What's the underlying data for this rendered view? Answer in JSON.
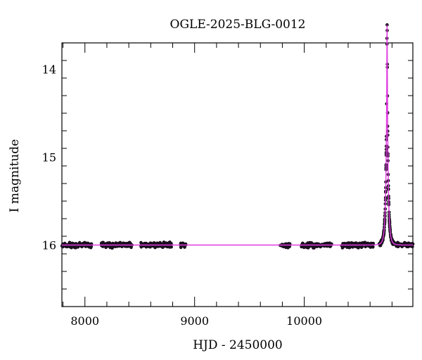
{
  "chart_data": {
    "type": "scatter",
    "title": "OGLE-2025-BLG-0012",
    "xlabel": "HJD - 2450000",
    "ylabel": "I magnitude",
    "xlim": [
      7790,
      10990
    ],
    "ylim": [
      16.7,
      13.7
    ],
    "y_inverted": true,
    "grid": false,
    "x_major_ticks": [
      8000,
      9000,
      10000
    ],
    "x_tick_labels": [
      "8000",
      "9000",
      "10000"
    ],
    "x_minor_step": 200,
    "y_major_ticks": [
      14,
      15,
      16
    ],
    "y_tick_labels": [
      "14",
      "15",
      "16"
    ],
    "y_minor_step": 0.2,
    "colors": {
      "points": "#1a0f1e",
      "model": "#e03ce0",
      "frame": "#000000"
    },
    "model": {
      "name": "",
      "kind": "point-lens microlensing",
      "baseline_mag": 16.0,
      "t0": 10755,
      "tE": 20,
      "u0": 0.1
    },
    "observing_seasons": [
      {
        "start": 7790,
        "end": 8060,
        "n": 140
      },
      {
        "start": 8150,
        "end": 8430,
        "n": 150
      },
      {
        "start": 8510,
        "end": 8790,
        "n": 150
      },
      {
        "start": 8870,
        "end": 8920,
        "n": 18
      },
      {
        "start": 9780,
        "end": 9870,
        "n": 40
      },
      {
        "start": 9970,
        "end": 10250,
        "n": 140
      },
      {
        "start": 10340,
        "end": 10630,
        "n": 150
      },
      {
        "start": 10680,
        "end": 10990,
        "n": 260
      }
    ],
    "scatter_mag": 0.025
  }
}
